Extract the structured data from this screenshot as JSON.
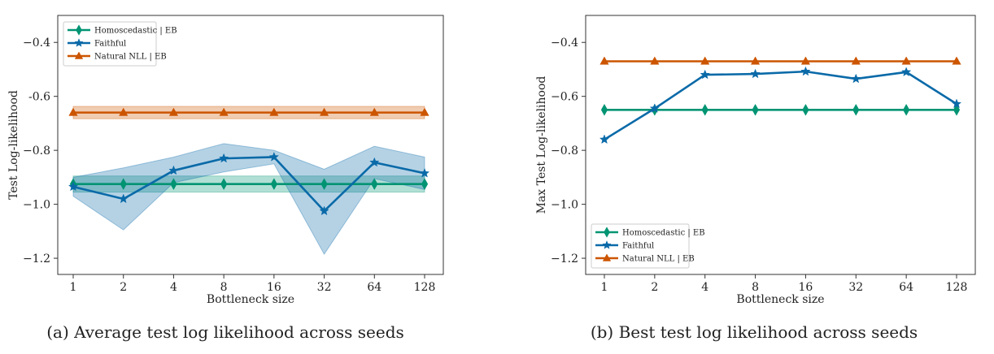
{
  "chart_data": [
    {
      "type": "line",
      "caption": "(a) Average test log likelihood across seeds",
      "xlabel": "Bottleneck size",
      "ylabel": "Test Log-likelihood",
      "categories": [
        "1",
        "2",
        "4",
        "8",
        "16",
        "32",
        "64",
        "128"
      ],
      "ylim": [
        -1.26,
        -0.3
      ],
      "yticks": [
        -1.2,
        -1.0,
        -0.8,
        -0.6,
        -0.4
      ],
      "ytick_labels": [
        "−1.2",
        "−1.0",
        "−0.8",
        "-0.6",
        "−0.4"
      ],
      "grid": false,
      "legend_position": "top-left",
      "series": [
        {
          "name": "Homoscedastic | EB",
          "color": "#009473",
          "marker": "diamond",
          "values": [
            -0.925,
            -0.925,
            -0.925,
            -0.925,
            -0.925,
            -0.925,
            -0.925,
            -0.925
          ],
          "band_lower": [
            -0.955,
            -0.955,
            -0.955,
            -0.955,
            -0.955,
            -0.955,
            -0.955,
            -0.955
          ],
          "band_upper": [
            -0.895,
            -0.895,
            -0.895,
            -0.895,
            -0.895,
            -0.895,
            -0.895,
            -0.895
          ]
        },
        {
          "name": "Faithful",
          "color": "#0a6aa8",
          "marker": "star",
          "values": [
            -0.935,
            -0.98,
            -0.875,
            -0.83,
            -0.825,
            -1.025,
            -0.845,
            -0.885
          ],
          "band_lower": [
            -0.97,
            -1.095,
            -0.92,
            -0.88,
            -0.85,
            -1.185,
            -0.905,
            -0.945
          ],
          "band_upper": [
            -0.9,
            -0.865,
            -0.825,
            -0.775,
            -0.8,
            -0.87,
            -0.785,
            -0.825
          ]
        },
        {
          "name": "Natural NLL | EB",
          "color": "#cc5500",
          "marker": "triangle",
          "values": [
            -0.66,
            -0.66,
            -0.66,
            -0.66,
            -0.66,
            -0.66,
            -0.66,
            -0.66
          ],
          "band_lower": [
            -0.683,
            -0.683,
            -0.683,
            -0.683,
            -0.683,
            -0.683,
            -0.683,
            -0.683
          ],
          "band_upper": [
            -0.637,
            -0.637,
            -0.637,
            -0.637,
            -0.637,
            -0.637,
            -0.637,
            -0.637
          ]
        }
      ]
    },
    {
      "type": "line",
      "caption": "(b) Best test log likelihood across seeds",
      "xlabel": "Bottleneck size",
      "ylabel": "Max Test Log-likelihood",
      "categories": [
        "1",
        "2",
        "4",
        "8",
        "16",
        "32",
        "64",
        "128"
      ],
      "ylim": [
        -1.26,
        -0.3
      ],
      "yticks": [
        -1.2,
        -1.0,
        -0.8,
        -0.6,
        -0.4
      ],
      "ytick_labels": [
        "−1.2",
        "−1.0",
        "−0.8",
        "−0.6",
        "−0.4"
      ],
      "grid": false,
      "legend_position": "bottom-left",
      "series": [
        {
          "name": "Homoscedastic | EB",
          "color": "#009473",
          "marker": "diamond",
          "values": [
            -0.65,
            -0.65,
            -0.65,
            -0.65,
            -0.65,
            -0.65,
            -0.65,
            -0.65
          ]
        },
        {
          "name": "Faithful",
          "color": "#0a6aa8",
          "marker": "star",
          "values": [
            -0.76,
            -0.645,
            -0.52,
            -0.517,
            -0.508,
            -0.535,
            -0.51,
            -0.628
          ]
        },
        {
          "name": "Natural NLL | EB",
          "color": "#cc5500",
          "marker": "triangle",
          "values": [
            -0.47,
            -0.47,
            -0.47,
            -0.47,
            -0.47,
            -0.47,
            -0.47,
            -0.47
          ]
        }
      ]
    }
  ]
}
